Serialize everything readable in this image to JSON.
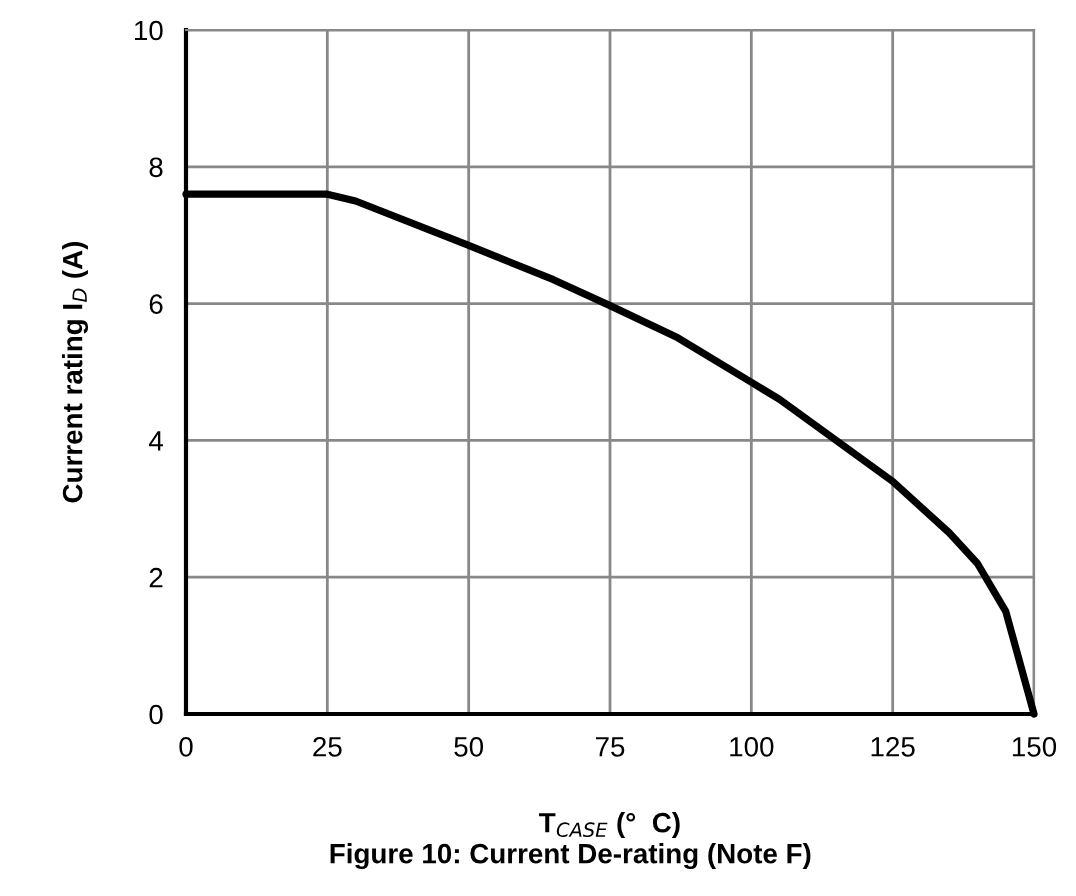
{
  "chart_data": {
    "type": "line",
    "x": [
      0,
      25,
      30,
      50,
      65,
      75,
      87,
      100,
      105,
      115,
      125,
      135,
      140,
      145,
      150
    ],
    "series": [
      {
        "color": "#000000",
        "values": [
          7.6,
          7.6,
          7.5,
          6.85,
          6.35,
          5.97,
          5.5,
          4.85,
          4.6,
          4.0,
          3.4,
          2.65,
          2.2,
          1.5,
          0
        ]
      }
    ],
    "xlabel": "T$_{CASE}$ (°  C)",
    "ylabel": "Current rating I$_{D}$ (A)",
    "annotations": [
      "Figure 10: Current De-rating (Note F)"
    ],
    "xlim": [
      0,
      150
    ],
    "xticks": [
      0,
      25,
      50,
      75,
      100,
      125,
      150
    ],
    "ylim": [
      0,
      10
    ],
    "yticks": [
      0,
      2,
      4,
      6,
      8,
      10
    ],
    "grid": true,
    "line_style": "solid"
  }
}
